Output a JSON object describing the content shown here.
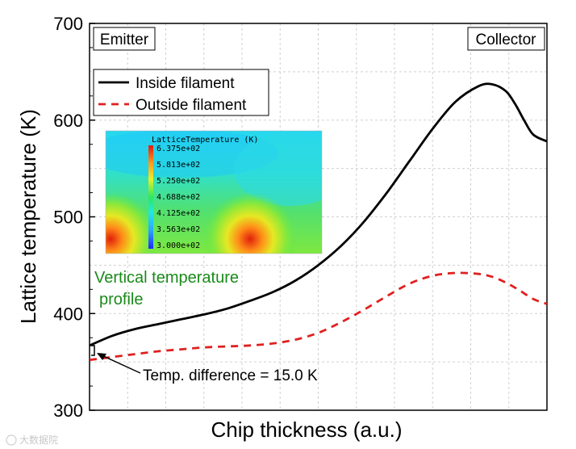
{
  "chart_data": {
    "type": "line",
    "title": "",
    "xlabel": "Chip thickness (a.u.)",
    "ylabel": "Lattice temperature (K)",
    "ylim": [
      300,
      700
    ],
    "xlim": [
      0,
      1
    ],
    "yticks": [
      "300",
      "400",
      "500",
      "600",
      "700"
    ],
    "grid": true,
    "legend_position": "top-left",
    "series": [
      {
        "name": "Inside filament",
        "color": "#000000",
        "style": "solid",
        "x": [
          0,
          0.05,
          0.1,
          0.15,
          0.2,
          0.25,
          0.3,
          0.35,
          0.4,
          0.45,
          0.5,
          0.55,
          0.6,
          0.65,
          0.7,
          0.75,
          0.8,
          0.85,
          0.88,
          0.91,
          0.93,
          0.95,
          0.97,
          1.0
        ],
        "y": [
          367,
          377,
          384,
          389,
          394,
          399,
          405,
          413,
          422,
          434,
          450,
          470,
          495,
          525,
          558,
          591,
          619,
          635,
          637,
          630,
          617,
          600,
          585,
          578
        ]
      },
      {
        "name": "Outside filament",
        "color": "#e02020",
        "style": "dashed",
        "x": [
          0,
          0.05,
          0.1,
          0.15,
          0.2,
          0.25,
          0.3,
          0.35,
          0.4,
          0.45,
          0.5,
          0.55,
          0.6,
          0.65,
          0.7,
          0.75,
          0.8,
          0.85,
          0.88,
          0.91,
          0.94,
          0.97,
          1.0
        ],
        "y": [
          352,
          355,
          358,
          361,
          363,
          365,
          366,
          367,
          369,
          373,
          380,
          391,
          404,
          418,
          431,
          439,
          442,
          441,
          438,
          432,
          424,
          415,
          410
        ]
      }
    ],
    "annotations": {
      "emitter": "Emitter",
      "collector": "Collector",
      "temp_difference": "Temp. difference = 15.0 K",
      "profile_line1": "Vertical temperature",
      "profile_line2": "profile"
    },
    "inset": {
      "title": "LatticeTemperature (K)",
      "colorbar_labels": [
        "6.375e+02",
        "5.813e+02",
        "5.250e+02",
        "4.688e+02",
        "4.125e+02",
        "3.563e+02",
        "3.000e+02"
      ]
    }
  },
  "watermark": "大数据院"
}
